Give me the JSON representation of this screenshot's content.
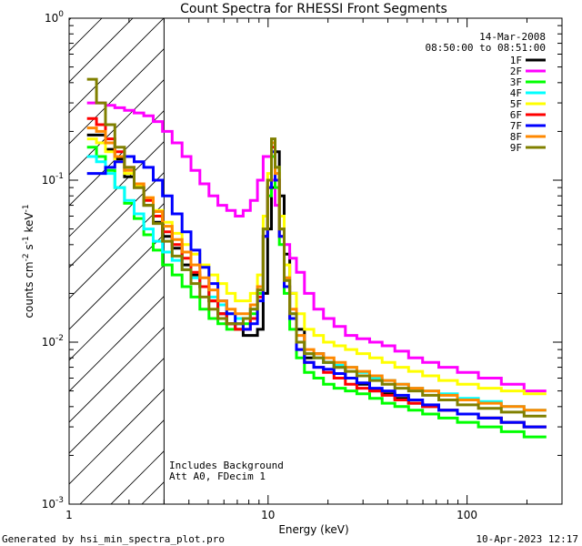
{
  "chart_data": {
    "type": "line",
    "title": "Count Spectra for RHESSI Front Segments",
    "xlabel": "Energy (keV)",
    "ylabel": "counts cm-2 s-1 keV-1",
    "xscale": "log",
    "yscale": "log",
    "xlim": [
      1.0,
      300.0
    ],
    "ylim": [
      0.001,
      1.0
    ],
    "x_ticks": [
      {
        "v": 1,
        "label": "1"
      },
      {
        "v": 10,
        "label": "10"
      },
      {
        "v": 100,
        "label": "100"
      }
    ],
    "y_ticks": [
      {
        "v": 1.0,
        "base": "10",
        "exp": "0"
      },
      {
        "v": 0.1,
        "base": "10",
        "exp": "-1"
      },
      {
        "v": 0.01,
        "base": "10",
        "exp": "-2"
      },
      {
        "v": 0.001,
        "base": "10",
        "exp": "-3"
      }
    ],
    "legend_header": [
      "14-Mar-2008",
      "08:50:00 to 08:51:00"
    ],
    "annotations": [
      "Includes Background",
      "Att A0, FDecim 1"
    ],
    "attenuator_cutoff_kev": 3.0,
    "legend_position": "top-right",
    "series": [
      {
        "name": "1F",
        "color": "#000000",
        "values": [
          0.19,
          0.19,
          0.155,
          0.135,
          0.105,
          0.09,
          0.07,
          0.055,
          0.045,
          0.038,
          0.03,
          0.026,
          0.022,
          0.018,
          0.015,
          0.013,
          0.012,
          0.011,
          0.011,
          0.012,
          0.02,
          0.05,
          0.09,
          0.15,
          0.08,
          0.035,
          0.02,
          0.012,
          0.008,
          0.0085,
          0.0075,
          0.007,
          0.006,
          0.0055,
          0.005,
          0.0048,
          0.0045,
          0.0042,
          0.004,
          0.0038,
          0.0036,
          0.0034,
          0.0032,
          0.003
        ]
      },
      {
        "name": "2F",
        "color": "#ff00ff",
        "values": [
          0.3,
          0.3,
          0.29,
          0.28,
          0.27,
          0.26,
          0.25,
          0.23,
          0.2,
          0.17,
          0.14,
          0.115,
          0.095,
          0.08,
          0.07,
          0.065,
          0.06,
          0.065,
          0.075,
          0.1,
          0.14,
          0.14,
          0.1,
          0.07,
          0.05,
          0.04,
          0.033,
          0.027,
          0.02,
          0.016,
          0.014,
          0.0125,
          0.011,
          0.0105,
          0.01,
          0.0095,
          0.0088,
          0.008,
          0.0075,
          0.007,
          0.0065,
          0.006,
          0.0055,
          0.005
        ]
      },
      {
        "name": "3F",
        "color": "#00ff00",
        "values": [
          0.16,
          0.14,
          0.115,
          0.09,
          0.072,
          0.058,
          0.046,
          0.037,
          0.03,
          0.026,
          0.022,
          0.019,
          0.016,
          0.014,
          0.013,
          0.012,
          0.012,
          0.013,
          0.015,
          0.02,
          0.045,
          0.08,
          0.14,
          0.09,
          0.04,
          0.02,
          0.012,
          0.008,
          0.0065,
          0.006,
          0.0055,
          0.0052,
          0.005,
          0.0048,
          0.0045,
          0.0042,
          0.004,
          0.0038,
          0.0036,
          0.0034,
          0.0032,
          0.003,
          0.0028,
          0.0026
        ]
      },
      {
        "name": "4F",
        "color": "#00ffff",
        "values": [
          0.14,
          0.13,
          0.11,
          0.09,
          0.075,
          0.062,
          0.05,
          0.042,
          0.036,
          0.032,
          0.028,
          0.025,
          0.022,
          0.019,
          0.017,
          0.015,
          0.014,
          0.014,
          0.016,
          0.022,
          0.05,
          0.1,
          0.17,
          0.12,
          0.05,
          0.025,
          0.015,
          0.01,
          0.0085,
          0.008,
          0.0075,
          0.0072,
          0.007,
          0.0065,
          0.006,
          0.0058,
          0.0055,
          0.0052,
          0.005,
          0.0048,
          0.0045,
          0.0043,
          0.004,
          0.0038
        ]
      },
      {
        "name": "5F",
        "color": "#ffff00",
        "values": [
          0.18,
          0.17,
          0.15,
          0.13,
          0.11,
          0.093,
          0.078,
          0.065,
          0.055,
          0.047,
          0.04,
          0.035,
          0.03,
          0.026,
          0.023,
          0.02,
          0.018,
          0.018,
          0.02,
          0.026,
          0.06,
          0.11,
          0.17,
          0.12,
          0.06,
          0.03,
          0.02,
          0.015,
          0.012,
          0.011,
          0.01,
          0.0095,
          0.009,
          0.0085,
          0.008,
          0.0075,
          0.007,
          0.0066,
          0.0062,
          0.0058,
          0.0055,
          0.0052,
          0.005,
          0.0048
        ]
      },
      {
        "name": "6F",
        "color": "#ff0000",
        "values": [
          0.24,
          0.22,
          0.18,
          0.15,
          0.12,
          0.095,
          0.075,
          0.06,
          0.048,
          0.04,
          0.033,
          0.027,
          0.022,
          0.018,
          0.015,
          0.013,
          0.012,
          0.012,
          0.014,
          0.019,
          0.045,
          0.09,
          0.16,
          0.1,
          0.045,
          0.022,
          0.014,
          0.009,
          0.0075,
          0.007,
          0.0065,
          0.006,
          0.0055,
          0.0052,
          0.005,
          0.0047,
          0.0044,
          0.0042,
          0.004,
          0.0038,
          0.0036,
          0.0034,
          0.0032,
          0.003
        ]
      },
      {
        "name": "7F",
        "color": "#0000ff",
        "values": [
          0.11,
          0.11,
          0.12,
          0.13,
          0.14,
          0.13,
          0.12,
          0.1,
          0.08,
          0.062,
          0.048,
          0.037,
          0.029,
          0.023,
          0.018,
          0.015,
          0.013,
          0.012,
          0.013,
          0.018,
          0.045,
          0.09,
          0.15,
          0.1,
          0.045,
          0.022,
          0.014,
          0.009,
          0.0075,
          0.007,
          0.0068,
          0.0064,
          0.006,
          0.0056,
          0.0052,
          0.005,
          0.0047,
          0.0044,
          0.0041,
          0.0038,
          0.0036,
          0.0034,
          0.0032,
          0.003
        ]
      },
      {
        "name": "8F",
        "color": "#ff8800",
        "values": [
          0.21,
          0.2,
          0.17,
          0.14,
          0.115,
          0.095,
          0.078,
          0.064,
          0.052,
          0.043,
          0.036,
          0.03,
          0.025,
          0.021,
          0.018,
          0.016,
          0.015,
          0.015,
          0.017,
          0.022,
          0.05,
          0.1,
          0.17,
          0.11,
          0.05,
          0.025,
          0.016,
          0.011,
          0.009,
          0.0085,
          0.008,
          0.0075,
          0.007,
          0.0066,
          0.0062,
          0.0058,
          0.0055,
          0.0052,
          0.005,
          0.0047,
          0.0044,
          0.0042,
          0.004,
          0.0038
        ]
      },
      {
        "name": "9F",
        "color": "#808000",
        "values": [
          0.42,
          0.3,
          0.22,
          0.16,
          0.12,
          0.09,
          0.07,
          0.054,
          0.042,
          0.034,
          0.028,
          0.023,
          0.019,
          0.016,
          0.014,
          0.013,
          0.013,
          0.014,
          0.016,
          0.021,
          0.05,
          0.1,
          0.18,
          0.12,
          0.05,
          0.024,
          0.015,
          0.01,
          0.0085,
          0.008,
          0.0075,
          0.007,
          0.0066,
          0.0062,
          0.0058,
          0.0055,
          0.0052,
          0.005,
          0.0047,
          0.0044,
          0.0041,
          0.0039,
          0.0037,
          0.0035
        ]
      }
    ],
    "energy_kev": [
      1.3,
      1.45,
      1.6,
      1.8,
      2.0,
      2.25,
      2.5,
      2.8,
      3.1,
      3.5,
      3.9,
      4.3,
      4.8,
      5.3,
      5.9,
      6.5,
      7.2,
      7.8,
      8.5,
      9.2,
      9.7,
      10.2,
      10.6,
      11.1,
      11.7,
      12.4,
      13.3,
      14.5,
      16.0,
      18.0,
      20.0,
      23.0,
      26.0,
      30.0,
      35.0,
      40.0,
      47.0,
      55.0,
      65.0,
      80.0,
      100.0,
      130.0,
      170.0,
      220.0
    ]
  },
  "footer": {
    "generated_by": "Generated by hsi_min_spectra_plot.pro",
    "timestamp": "10-Apr-2023 12:17"
  }
}
